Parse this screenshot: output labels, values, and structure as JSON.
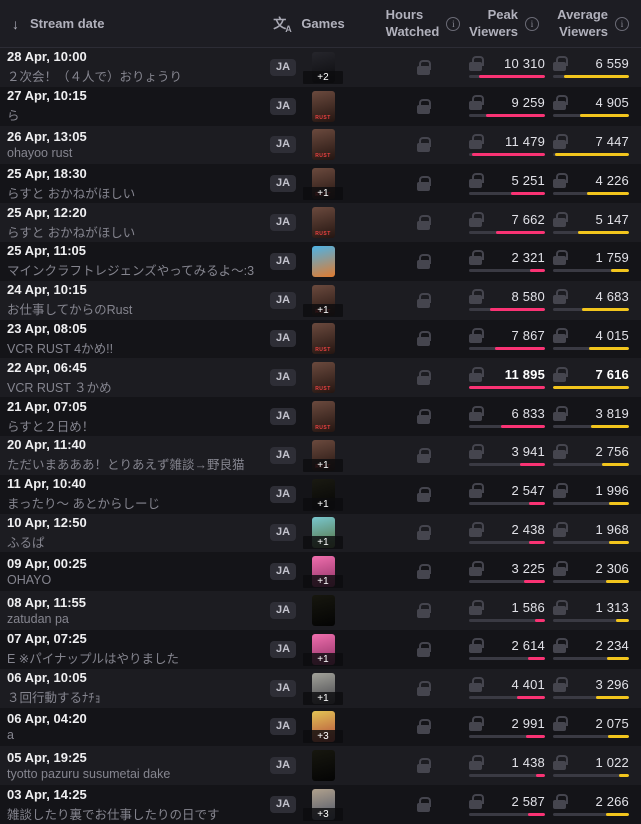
{
  "colors": {
    "peak_accent": "#fa3374",
    "average_accent": "#f2c51d",
    "bar_track": "#3a3a43"
  },
  "header": {
    "stream_date": "Stream date",
    "sort_icon": "down-arrow",
    "language_icon": {
      "main": "文",
      "sub": "A"
    },
    "games": "Games",
    "hours_watched": [
      "Hours",
      "Watched"
    ],
    "peak_viewers": [
      "Peak",
      "Viewers"
    ],
    "average_viewers": [
      "Average",
      "Viewers"
    ]
  },
  "rows": [
    {
      "date": "28 Apr, 10:00",
      "title": "２次会！（４人で）おりょうり",
      "lang": "JA",
      "thumb": {
        "colors": [
          "#26262c",
          "#0b0b0e"
        ],
        "label": "",
        "badge": "+2"
      },
      "peak": "10 310",
      "avg": "6 559"
    },
    {
      "date": "27 Apr, 10:15",
      "title": "ら",
      "lang": "JA",
      "thumb": {
        "colors": [
          "#6b4a3e",
          "#241511"
        ],
        "label": "RUST",
        "badge": ""
      },
      "peak": "9 259",
      "avg": "4 905"
    },
    {
      "date": "26 Apr, 13:05",
      "title": "ohayoo rust",
      "lang": "JA",
      "thumb": {
        "colors": [
          "#6b4a3e",
          "#241511"
        ],
        "label": "RUST",
        "badge": ""
      },
      "peak": "11 479",
      "avg": "7 447"
    },
    {
      "date": "25 Apr, 18:30",
      "title": "らすと おかねがほしい",
      "lang": "JA",
      "thumb": {
        "colors": [
          "#6b4a3e",
          "#241511"
        ],
        "label": "RUST",
        "badge": "+1"
      },
      "peak": "5 251",
      "avg": "4 226"
    },
    {
      "date": "25 Apr, 12:20",
      "title": "らすと おかねがほしい",
      "lang": "JA",
      "thumb": {
        "colors": [
          "#6b4a3e",
          "#241511"
        ],
        "label": "RUST",
        "badge": ""
      },
      "peak": "7 662",
      "avg": "5 147"
    },
    {
      "date": "25 Apr, 11:05",
      "title": "マインクラフトレジェンズやってみるよ～:3",
      "lang": "JA",
      "thumb": {
        "colors": [
          "#4db3e6",
          "#e07b2f"
        ],
        "label": "",
        "badge": ""
      },
      "peak": "2 321",
      "avg": "1 759"
    },
    {
      "date": "24 Apr, 10:15",
      "title": "お仕事してからのRust",
      "lang": "JA",
      "thumb": {
        "colors": [
          "#6b4a3e",
          "#241511"
        ],
        "label": "RUST",
        "badge": "+1"
      },
      "peak": "8 580",
      "avg": "4 683"
    },
    {
      "date": "23 Apr, 08:05",
      "title": "VCR RUST 4かめ!!",
      "lang": "JA",
      "thumb": {
        "colors": [
          "#6b4a3e",
          "#241511"
        ],
        "label": "RUST",
        "badge": ""
      },
      "peak": "7 867",
      "avg": "4 015"
    },
    {
      "date": "22 Apr, 06:45",
      "title": "VCR RUST ３かめ",
      "lang": "JA",
      "thumb": {
        "colors": [
          "#6b4a3e",
          "#241511"
        ],
        "label": "RUST",
        "badge": ""
      },
      "peak": "11 895",
      "avg": "7 616"
    },
    {
      "date": "21 Apr, 07:05",
      "title": "らすと２日め！",
      "lang": "JA",
      "thumb": {
        "colors": [
          "#6b4a3e",
          "#241511"
        ],
        "label": "RUST",
        "badge": ""
      },
      "peak": "6 833",
      "avg": "3 819"
    },
    {
      "date": "20 Apr, 11:40",
      "title": "ただいまあああ！とりあえず雑談→野良猫",
      "lang": "JA",
      "thumb": {
        "colors": [
          "#6b4a3e",
          "#241511"
        ],
        "label": "RUST",
        "badge": "+1"
      },
      "peak": "3 941",
      "avg": "2 756"
    },
    {
      "date": "11 Apr, 10:40",
      "title": "まったり～ あとからしーじ",
      "lang": "JA",
      "thumb": {
        "colors": [
          "#1a1a12",
          "#050505"
        ],
        "label": "",
        "badge": "+1"
      },
      "peak": "2 547",
      "avg": "1 996"
    },
    {
      "date": "10 Apr, 12:50",
      "title": "ふるぱ",
      "lang": "JA",
      "thumb": {
        "colors": [
          "#79c7cf",
          "#55703d"
        ],
        "label": "",
        "badge": "+1"
      },
      "peak": "2 438",
      "avg": "1 968"
    },
    {
      "date": "09 Apr, 00:25",
      "title": "OHAYO",
      "lang": "JA",
      "thumb": {
        "colors": [
          "#f06fae",
          "#8d2f63"
        ],
        "label": "",
        "badge": "+1"
      },
      "peak": "3 225",
      "avg": "2 306"
    },
    {
      "date": "08 Apr, 11:55",
      "title": "zatudan pa",
      "lang": "JA",
      "thumb": {
        "colors": [
          "#17170f",
          "#040404"
        ],
        "label": "",
        "badge": ""
      },
      "peak": "1 586",
      "avg": "1 313"
    },
    {
      "date": "07 Apr, 07:25",
      "title": "E ※パイナップルはやりました",
      "lang": "JA",
      "thumb": {
        "colors": [
          "#f06fae",
          "#8d2f63"
        ],
        "label": "",
        "badge": "+1"
      },
      "peak": "2 614",
      "avg": "2 234"
    },
    {
      "date": "06 Apr, 10:05",
      "title": "３回行動するﾅﾁｮ",
      "lang": "JA",
      "thumb": {
        "colors": [
          "#a3a39b",
          "#44444a"
        ],
        "label": "",
        "badge": "+1"
      },
      "peak": "4 401",
      "avg": "3 296"
    },
    {
      "date": "06 Apr, 04:20",
      "title": "a",
      "lang": "JA",
      "thumb": {
        "colors": [
          "#e3c455",
          "#b34a3c"
        ],
        "label": "",
        "badge": "+3"
      },
      "peak": "2 991",
      "avg": "2 075"
    },
    {
      "date": "05 Apr, 19:25",
      "title": "tyotto pazuru susumetai dake",
      "lang": "JA",
      "thumb": {
        "colors": [
          "#17170f",
          "#040404"
        ],
        "label": "",
        "badge": ""
      },
      "peak": "1 438",
      "avg": "1 022"
    },
    {
      "date": "03 Apr, 14:25",
      "title": "雑談したり裏でお仕事したりの日です",
      "lang": "JA",
      "thumb": {
        "colors": [
          "#b0a18d",
          "#4c5468"
        ],
        "label": "",
        "badge": "+3"
      },
      "peak": "2 587",
      "avg": "2 266"
    }
  ]
}
